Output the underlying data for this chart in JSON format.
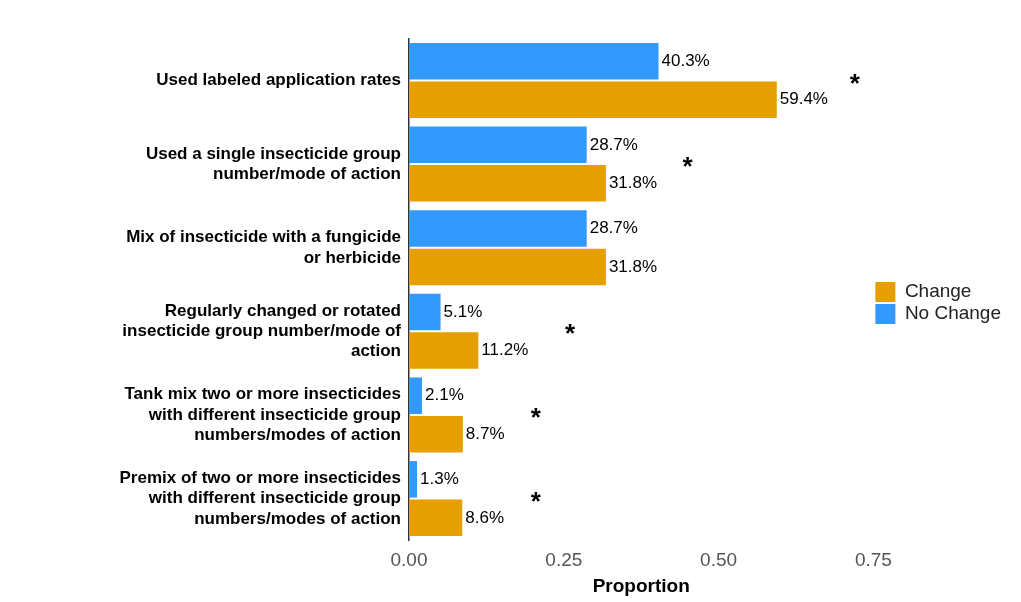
{
  "chart_data": {
    "type": "bar",
    "orientation": "horizontal",
    "xlabel": "Proportion",
    "categories": [
      "Used labeled application rates",
      "Used a single insecticide group number/mode of action",
      "Mix of insecticide with a fungicide or herbicide",
      "Regularly changed or rotated insecticide group number/mode of action",
      "Tank mix two or more insecticides with different insecticide group numbers/modes of action",
      "Premix of two or more insecticides with different insecticide group numbers/modes of action"
    ],
    "series": [
      {
        "name": "No Change",
        "color": "#3399ff",
        "values": [
          0.403,
          0.287,
          0.287,
          0.051,
          0.021,
          0.013
        ],
        "value_labels": [
          "40.3%",
          "28.7%",
          "28.7%",
          "5.1%",
          "2.1%",
          "1.3%"
        ]
      },
      {
        "name": "Change",
        "color": "#e69f00",
        "values": [
          0.594,
          0.318,
          0.318,
          0.112,
          0.087,
          0.086
        ],
        "value_labels": [
          "59.4%",
          "31.8%",
          "31.8%",
          "11.2%",
          "8.7%",
          "8.6%"
        ]
      }
    ],
    "xlim": [
      0,
      0.75
    ],
    "xticks": [
      {
        "value": 0,
        "label": "0.00"
      },
      {
        "value": 0.25,
        "label": "0.25"
      },
      {
        "value": 0.5,
        "label": "0.50"
      },
      {
        "value": 0.75,
        "label": "0.75"
      }
    ],
    "grid": false,
    "legend": "right",
    "annotations": [
      "*",
      "*",
      "*",
      "*",
      "*"
    ]
  }
}
